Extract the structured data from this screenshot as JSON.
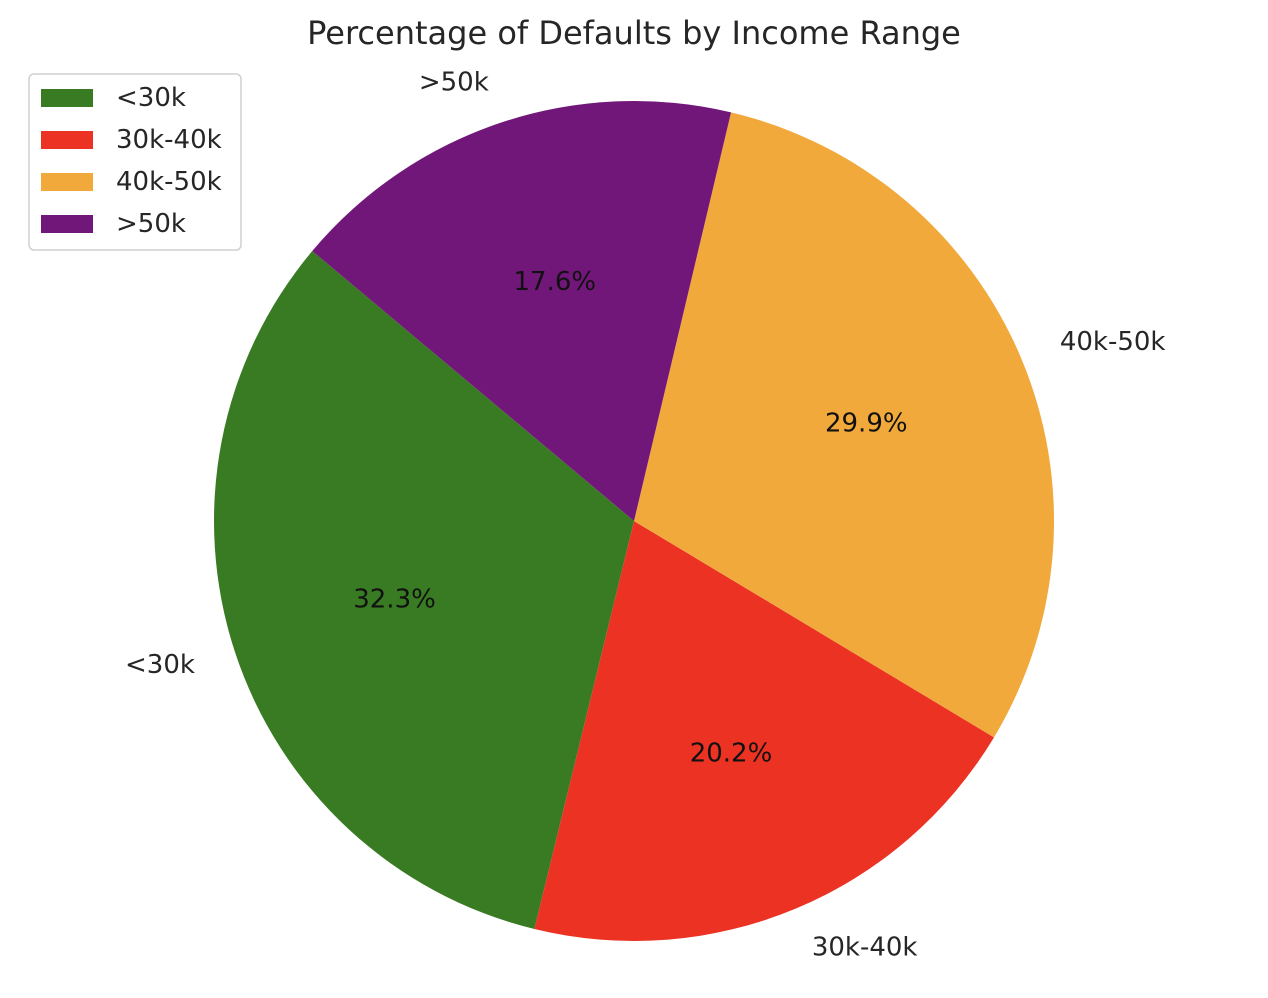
{
  "chart_data": {
    "type": "pie",
    "title": "Percentage of Defaults by Income Range",
    "categories": [
      "<30k",
      "30k-40k",
      "40k-50k",
      ">50k"
    ],
    "values": [
      32.3,
      20.2,
      29.9,
      17.6
    ],
    "value_labels": [
      "32.3%",
      "20.2%",
      "29.9%",
      "17.6%"
    ],
    "colors": [
      "#387b22",
      "#eb3223",
      "#f2a93b",
      "#72177a"
    ],
    "legend": {
      "placement": "top-left",
      "entries": [
        "<30k",
        "30k-40k",
        "40k-50k",
        ">50k"
      ]
    },
    "start_angle_deg": 140,
    "direction": "counterclockwise"
  }
}
